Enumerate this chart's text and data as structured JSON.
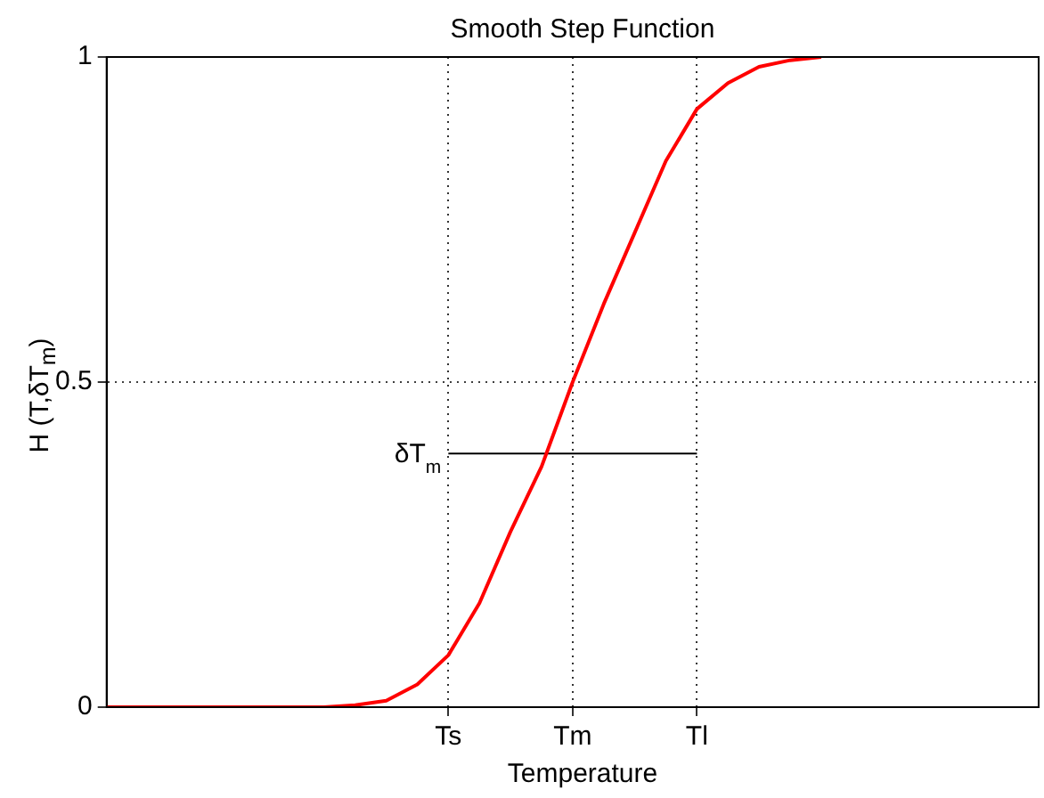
{
  "chart_data": {
    "type": "line",
    "title": "Smooth Step Function",
    "xlabel": "Temperature",
    "ylabel": "H (T,δT$_{m}$)",
    "categories": [
      null,
      null,
      null,
      null,
      null,
      null,
      null,
      null,
      null,
      null,
      null,
      "Ts",
      null,
      null,
      null,
      "Tm",
      null,
      null,
      null,
      "Tl",
      null,
      null,
      null,
      null,
      null,
      null,
      null,
      null,
      null,
      null,
      null
    ],
    "ylim": [
      0,
      1
    ],
    "yticks": [
      0,
      {
        "value": 0.5,
        "label": "0.5"
      },
      1
    ],
    "grid": true,
    "legend": false,
    "marker": "none",
    "line_style": "solid",
    "series": [
      {
        "color": "#ff0000",
        "values": [
          0,
          0,
          0,
          0,
          0,
          0,
          0,
          0,
          0.003,
          0.01,
          0.035,
          0.08,
          0.16,
          0.27,
          0.37,
          0.5,
          0.62,
          0.73,
          0.84,
          0.92,
          0.96,
          0.985,
          0.995,
          1,
          null,
          null,
          null,
          null,
          null,
          null,
          null
        ]
      },
      {
        "name": "δT$_{m}$",
        "color": "#000000",
        "values": [
          null,
          null,
          null,
          null,
          null,
          null,
          null,
          null,
          null,
          null,
          null,
          0.39,
          0.39,
          0.39,
          0.39,
          0.39,
          0.39,
          0.39,
          0.39,
          0.39,
          null,
          null,
          null,
          null,
          null,
          null,
          null,
          null,
          null,
          null,
          null
        ]
      }
    ]
  }
}
